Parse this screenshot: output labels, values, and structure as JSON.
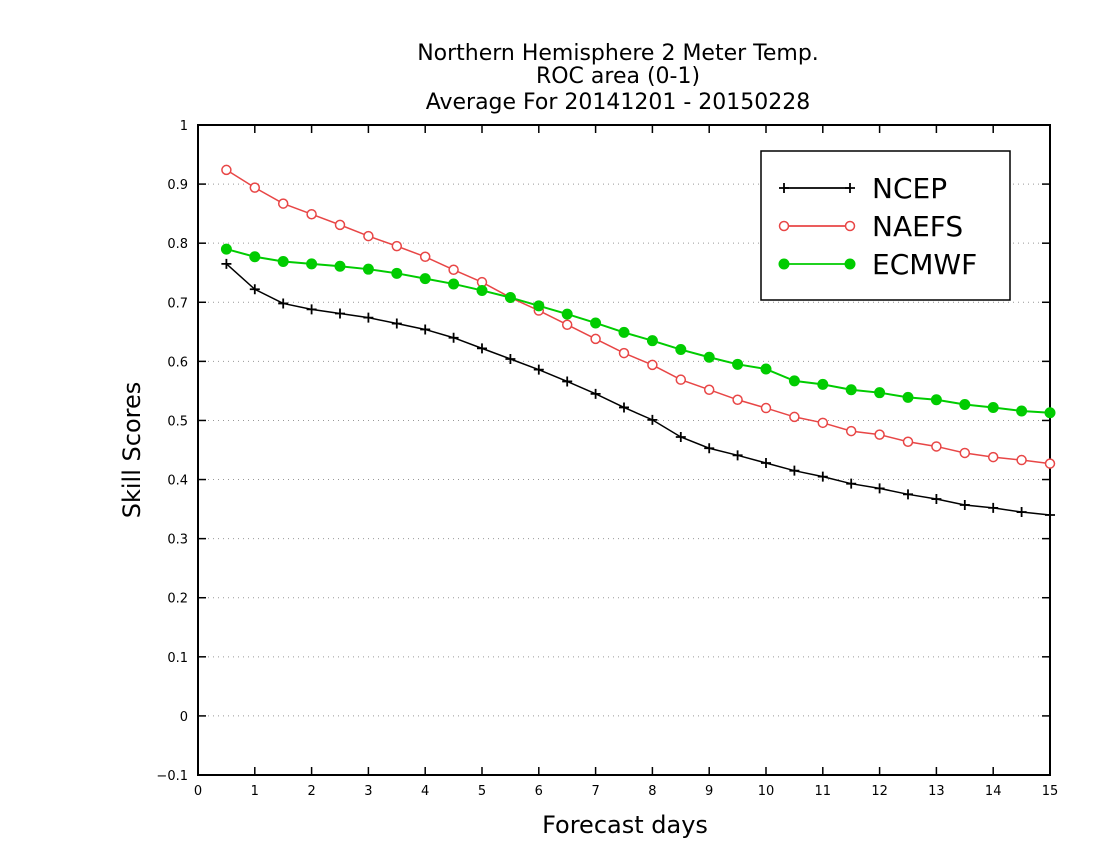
{
  "chart_data": {
    "type": "line",
    "title": [
      "Northern Hemisphere 2 Meter Temp.",
      "ROC area (0-1)",
      "Average For 20141201 - 20150228"
    ],
    "xlabel": "Forecast days",
    "ylabel": "Skill Scores",
    "xlim": [
      0,
      15
    ],
    "ylim": [
      -0.1,
      1
    ],
    "xticks": [
      "0",
      "1",
      "2",
      "3",
      "4",
      "5",
      "6",
      "7",
      "8",
      "9",
      "10",
      "11",
      "12",
      "13",
      "14",
      "15"
    ],
    "yticks": [
      "-0.1",
      "0",
      "0.1",
      "0.2",
      "0.3",
      "0.4",
      "0.5",
      "0.6",
      "0.7",
      "0.8",
      "0.9",
      "1"
    ],
    "grid": "horizontal dotted",
    "legend_position": "top-right",
    "x": [
      0.5,
      1,
      1.5,
      2,
      2.5,
      3,
      3.5,
      4,
      4.5,
      5,
      5.5,
      6,
      6.5,
      7,
      7.5,
      8,
      8.5,
      9,
      9.5,
      10,
      10.5,
      11,
      11.5,
      12,
      12.5,
      13,
      13.5,
      14,
      14.5,
      15
    ],
    "series": [
      {
        "name": "NCEP",
        "color": "#000000",
        "marker": "plus",
        "values": [
          0.765,
          0.722,
          0.698,
          0.688,
          0.681,
          0.674,
          0.664,
          0.654,
          0.64,
          0.622,
          0.604,
          0.586,
          0.566,
          0.545,
          0.522,
          0.501,
          0.472,
          0.453,
          0.441,
          0.428,
          0.415,
          0.405,
          0.393,
          0.385,
          0.375,
          0.367,
          0.357,
          0.352,
          0.345,
          0.34
        ]
      },
      {
        "name": "NAEFS",
        "color": "#e84646",
        "marker": "open-circle",
        "values": [
          0.924,
          0.894,
          0.867,
          0.849,
          0.831,
          0.812,
          0.795,
          0.777,
          0.755,
          0.734,
          0.708,
          0.686,
          0.662,
          0.638,
          0.614,
          0.594,
          0.569,
          0.552,
          0.535,
          0.521,
          0.506,
          0.496,
          0.482,
          0.476,
          0.464,
          0.456,
          0.445,
          0.438,
          0.433,
          0.427
        ]
      },
      {
        "name": "ECMWF",
        "color": "#00cc00",
        "marker": "filled-circle",
        "values": [
          0.79,
          0.777,
          0.769,
          0.765,
          0.761,
          0.756,
          0.749,
          0.74,
          0.731,
          0.72,
          0.708,
          0.694,
          0.68,
          0.665,
          0.649,
          0.635,
          0.62,
          0.607,
          0.595,
          0.587,
          0.567,
          0.561,
          0.552,
          0.547,
          0.539,
          0.535,
          0.527,
          0.522,
          0.516,
          0.513
        ]
      }
    ]
  }
}
